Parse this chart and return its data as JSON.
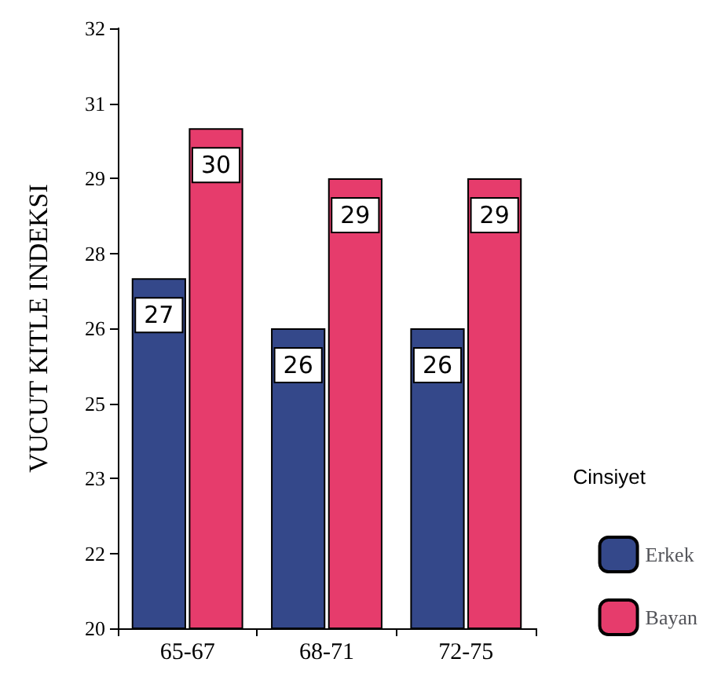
{
  "chart_data": {
    "type": "bar",
    "ylabel": "VUCUT KITLE INDEKSI",
    "legend_title": "Cinsiyet",
    "categories": [
      "65-67",
      "68-71",
      "72-75"
    ],
    "series": [
      {
        "name": "Erkek",
        "color": "#34488a",
        "values": [
          27,
          26,
          26
        ]
      },
      {
        "name": "Bayan",
        "color": "#e63c6c",
        "values": [
          30,
          29,
          29
        ]
      }
    ],
    "ylim": [
      20,
      32
    ],
    "yticks": [
      20,
      {
        "value": 21.5,
        "label": "22"
      },
      23,
      {
        "value": 24.5,
        "label": "25"
      },
      26,
      {
        "value": 27.5,
        "label": "28"
      },
      29,
      {
        "value": 30.5,
        "label": "31"
      },
      32
    ],
    "data_labels": true,
    "grid": false,
    "legend": "bottom right"
  }
}
